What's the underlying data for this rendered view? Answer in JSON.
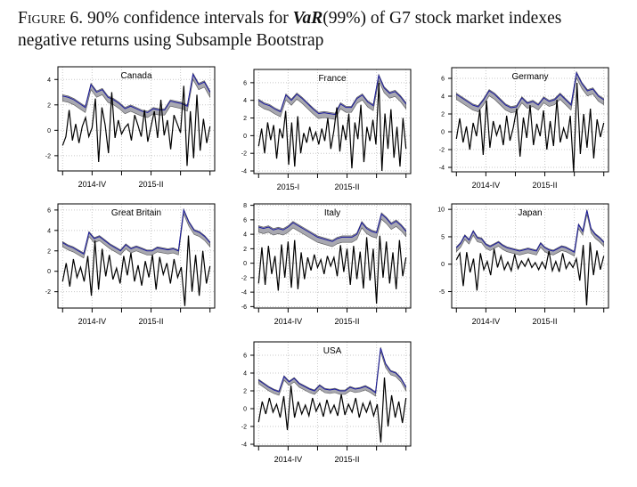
{
  "caption": {
    "label": "Figure 6.",
    "pre": "90% confidence intervals for ",
    "var": "VaR",
    "post": "(99%) of G7 stock market indexes",
    "line2": "negative returns using Subsample Bootstrap"
  },
  "colors": {
    "var_line": "#1a1a9e",
    "band": "#a8a8b0",
    "returns": "#000000",
    "grid": "#c8c8c8"
  },
  "chart_data": [
    {
      "type": "line",
      "title": "Canada",
      "ylim": [
        -3.2,
        5
      ],
      "yticks": [
        -2,
        0,
        2,
        4
      ],
      "xticks": [
        "",
        "2014-IV",
        "",
        "2015-II",
        "",
        ""
      ],
      "ci_width": 0.5,
      "var": [
        2.7,
        2.6,
        2.4,
        2.1,
        1.8,
        3.6,
        3.0,
        3.2,
        2.6,
        2.4,
        2.1,
        1.7,
        1.9,
        1.7,
        1.5,
        1.4,
        1.7,
        1.6,
        1.6,
        2.3,
        2.2,
        2.1,
        1.9,
        4.4,
        3.6,
        3.8,
        3.0
      ],
      "returns": [
        -1.2,
        -0.5,
        1.6,
        -0.8,
        0.5,
        -1,
        0.3,
        1,
        -0.5,
        0.2,
        2.5,
        -2.5,
        1.8,
        0.4,
        -1.8,
        3,
        -0.6,
        0.8,
        -0.3,
        0.2,
        0.5,
        -0.8,
        1.2,
        0.4,
        -0.5,
        1.6,
        -0.9,
        0.3,
        1.5,
        -0.6,
        2.4,
        -0.4,
        0.8,
        -1.5,
        1.2,
        0.5,
        -0.2,
        3.5,
        -2.8,
        1.5,
        -2.2,
        2.8,
        -1.6,
        0.9,
        -1,
        0.3
      ]
    },
    {
      "type": "line",
      "title": "France",
      "ylim": [
        -4.3,
        7.5
      ],
      "yticks": [
        -4,
        -2,
        0,
        2,
        4,
        6
      ],
      "xticks": [
        "",
        "2015-I",
        "",
        "2015-II",
        "",
        ""
      ],
      "ci_width": 0.7,
      "var": [
        4.0,
        3.6,
        3.4,
        3.0,
        2.7,
        4.6,
        4.0,
        4.7,
        4.2,
        3.6,
        3.0,
        2.5,
        2.6,
        2.5,
        2.4,
        3.6,
        3.2,
        3.2,
        4.2,
        4.6,
        3.8,
        3.4,
        6.8,
        5.4,
        4.8,
        5.0,
        4.4,
        3.6
      ],
      "returns": [
        -1.2,
        0.8,
        -2,
        1.5,
        -0.5,
        1.2,
        -2.6,
        0.8,
        -0.3,
        2.8,
        -3.3,
        1.5,
        -3.5,
        2.2,
        -2,
        0.3,
        -0.8,
        1,
        -0.5,
        0.4,
        -1,
        0.8,
        -0.6,
        2,
        -1.5,
        0.5,
        3.2,
        -1.8,
        1.2,
        -0.5,
        2.5,
        -3.7,
        1.5,
        -0.4,
        3.5,
        -3,
        1,
        -0.6,
        1.8,
        -1,
        6,
        -4,
        2.5,
        -1.5,
        3,
        -2.5,
        1,
        -3.5,
        2,
        -1.5
      ]
    },
    {
      "type": "line",
      "title": "Germany",
      "ylim": [
        -4.5,
        7.2
      ],
      "yticks": [
        -4,
        -2,
        0,
        2,
        4,
        6
      ],
      "xticks": [
        "",
        "2014-IV",
        "",
        "2015-II",
        "",
        ""
      ],
      "ci_width": 0.7,
      "var": [
        4.2,
        3.8,
        3.4,
        3.0,
        2.8,
        3.6,
        4.6,
        4.2,
        3.6,
        3.0,
        2.7,
        2.8,
        3.8,
        3.2,
        3.4,
        3.0,
        3.8,
        3.4,
        3.6,
        4.2,
        3.6,
        3.0,
        6.6,
        5.4,
        4.6,
        4.8,
        4.0,
        3.6
      ],
      "returns": [
        -0.8,
        1.5,
        -1.2,
        0.6,
        -2,
        1,
        -0.5,
        2.5,
        -2.6,
        3.5,
        -1.8,
        1.2,
        -0.4,
        0.8,
        -1.5,
        1.8,
        -1,
        0.5,
        2.6,
        -2.8,
        1.6,
        -0.7,
        3,
        -1.5,
        0.9,
        -0.5,
        2.4,
        -2,
        1.2,
        -1.6,
        3.6,
        -1.2,
        0.4,
        -0.8,
        1.8,
        -4.5,
        5.5,
        -2.5,
        2,
        -1.8,
        2.6,
        -3,
        1.4,
        -0.6,
        1
      ]
    },
    {
      "type": "line",
      "title": "Great Britain",
      "ylim": [
        -3.6,
        6.6
      ],
      "yticks": [
        -2,
        0,
        2,
        4,
        6
      ],
      "xticks": [
        "",
        "2014-IV",
        "",
        "2015-II",
        "",
        ""
      ],
      "ci_width": 0.5,
      "var": [
        2.8,
        2.5,
        2.3,
        2.0,
        1.7,
        3.8,
        3.2,
        3.4,
        3.0,
        2.6,
        2.3,
        2.0,
        2.6,
        2.2,
        2.4,
        2.2,
        2.0,
        2.0,
        2.3,
        2.2,
        2.1,
        2.2,
        2.0,
        6.0,
        4.8,
        4.0,
        3.8,
        3.4,
        2.8
      ],
      "returns": [
        -1,
        0.8,
        -1.5,
        1.2,
        -0.6,
        0.4,
        -1,
        1.5,
        -2.4,
        3,
        -1.8,
        2.2,
        -0.5,
        1.6,
        -0.8,
        0.3,
        -1.2,
        1.5,
        -0.4,
        1.8,
        -1,
        0.6,
        -1.4,
        1,
        -0.6,
        1.6,
        -1.8,
        1.4,
        -0.3,
        0.8,
        -1.2,
        1.2,
        -0.6,
        0.4,
        -3.4,
        3.5,
        -2,
        1.6,
        -2.4,
        2,
        -1.2,
        0.5
      ]
    },
    {
      "type": "line",
      "title": "Italy",
      "ylim": [
        -6.2,
        8.2
      ],
      "yticks": [
        -6,
        -4,
        -2,
        0,
        2,
        4,
        6,
        8
      ],
      "xticks": [
        "",
        "2014-IV",
        "",
        "2015-II",
        "",
        ""
      ],
      "ci_width": 0.9,
      "var": [
        5.0,
        4.8,
        5.0,
        4.6,
        4.8,
        4.6,
        5.0,
        5.6,
        5.2,
        4.8,
        4.4,
        4.0,
        3.6,
        3.4,
        3.2,
        3.0,
        3.4,
        3.6,
        3.6,
        3.6,
        4.0,
        5.6,
        4.8,
        4.4,
        4.2,
        6.8,
        6.2,
        5.4,
        5.8,
        5.2,
        4.4
      ],
      "returns": [
        -2.8,
        2.2,
        -3,
        2.4,
        -1.5,
        1,
        -3.8,
        2.6,
        -2,
        3,
        -3.4,
        3.2,
        -3.6,
        1.5,
        -2.2,
        0.8,
        -1,
        1.2,
        -0.6,
        0.5,
        -1.5,
        1,
        -0.4,
        0.8,
        -1.8,
        2.5,
        -1.2,
        2,
        -3,
        2.4,
        -2.2,
        1.6,
        -3.5,
        3.6,
        -2.4,
        2,
        -5.6,
        3.8,
        -2,
        3,
        -2.8,
        1.5,
        -3.6,
        3.2,
        -1.8,
        0.8
      ]
    },
    {
      "type": "line",
      "title": "Japan",
      "ylim": [
        -8,
        11
      ],
      "yticks": [
        -5,
        0,
        5,
        10
      ],
      "xticks": [
        "",
        "2014-IV",
        "",
        "2015-II",
        "",
        ""
      ],
      "ci_width": 0.9,
      "var": [
        3.0,
        3.8,
        5.2,
        4.4,
        6.0,
        4.8,
        4.6,
        3.6,
        3.2,
        3.6,
        4.0,
        3.4,
        3.0,
        2.8,
        2.6,
        2.4,
        2.6,
        2.8,
        2.6,
        2.4,
        3.8,
        3.0,
        2.6,
        2.4,
        2.8,
        3.2,
        3.0,
        2.6,
        2.2,
        7.2,
        6.0,
        9.8,
        6.4,
        5.4,
        4.8,
        4.0
      ],
      "returns": [
        0.8,
        2,
        -4,
        2.2,
        -1.5,
        1,
        -4.8,
        2,
        -1,
        0.5,
        -2,
        2.8,
        -0.6,
        1.5,
        -1,
        0.4,
        -1.2,
        1.8,
        -0.8,
        0.6,
        -0.4,
        1,
        -0.6,
        0.3,
        -1,
        0.4,
        -0.8,
        2.4,
        -1.2,
        0.5,
        -1.4,
        2,
        -0.8,
        0.4,
        -0.6,
        1,
        -3,
        3.5,
        -7.5,
        4,
        -2,
        2.5,
        -1,
        1.5
      ]
    },
    {
      "type": "line",
      "title": "USA",
      "ylim": [
        -4.2,
        7.5
      ],
      "yticks": [
        -4,
        -2,
        0,
        2,
        4,
        6
      ],
      "xticks": [
        "",
        "2014-IV",
        "",
        "2015-II",
        "",
        ""
      ],
      "ci_width": 0.5,
      "var": [
        3.2,
        2.8,
        2.4,
        2.1,
        1.9,
        3.6,
        3.0,
        3.4,
        2.8,
        2.5,
        2.2,
        2.0,
        2.6,
        2.2,
        2.1,
        2.2,
        2.0,
        2.0,
        2.4,
        2.2,
        2.3,
        2.5,
        2.2,
        1.8,
        6.8,
        5.0,
        4.2,
        4.0,
        3.4,
        2.4
      ],
      "returns": [
        -1.5,
        0.8,
        -0.6,
        1.2,
        -0.4,
        0.5,
        -1,
        1.4,
        -2.4,
        2.6,
        -1,
        0.8,
        -0.6,
        0.4,
        -0.8,
        1.2,
        -0.3,
        0.6,
        -0.9,
        1,
        -0.5,
        0.4,
        -0.8,
        1.6,
        -0.7,
        0.5,
        -0.4,
        1.2,
        -1,
        0.6,
        -0.4,
        0.8,
        -0.8,
        0.5,
        -3.8,
        3.5,
        -2,
        1.5,
        -1,
        0.8,
        -1.6,
        1.2
      ]
    }
  ]
}
